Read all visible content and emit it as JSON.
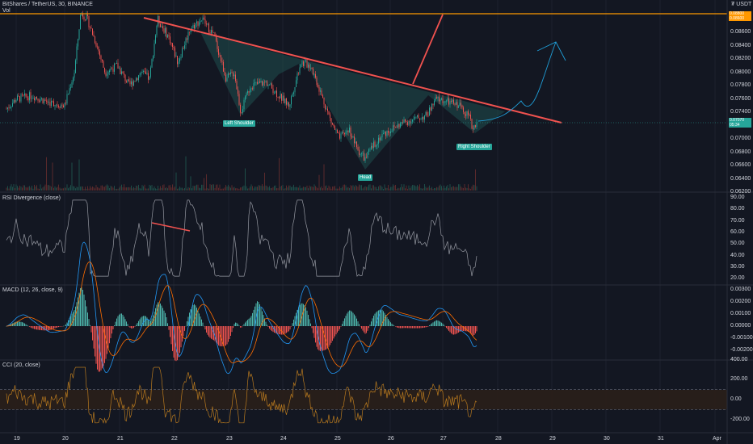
{
  "header": {
    "symbol": "BitShares / TetherUS, 30, BINANCE",
    "vol": "Vol",
    "currency": "₮ USDT"
  },
  "price_axis": {
    "ticks": [
      "0.08600",
      "0.08400",
      "0.08200",
      "0.08000",
      "0.07800",
      "0.07600",
      "0.07400",
      "0.07200",
      "0.07000",
      "0.06800",
      "0.06600",
      "0.06400",
      "0.06200"
    ],
    "current_price": "0.07070",
    "countdown": "05:34",
    "top_price": "0.08800",
    "top_price2": "0.08600"
  },
  "pattern_labels": {
    "left_shoulder": "Left Shoulder",
    "head": "Head",
    "right_shoulder": "Right Shoulder"
  },
  "rsi": {
    "title": "RSI Divergence (close)",
    "ticks": [
      "90.00",
      "80.00",
      "70.00",
      "60.00",
      "50.00",
      "40.00",
      "30.00",
      "20.00"
    ]
  },
  "macd": {
    "title": "MACD (12, 26, close, 9)",
    "ticks": [
      "0.00300",
      "0.00200",
      "0.00100",
      "0.00000",
      "-0.00100",
      "-0.00200"
    ]
  },
  "cci": {
    "title": "CCI (20, close)",
    "ticks": [
      "400.00",
      "200.00",
      "0.00",
      "-200.00"
    ]
  },
  "time_axis": {
    "labels": [
      "19",
      "20",
      "21",
      "22",
      "23",
      "24",
      "25",
      "26",
      "27",
      "28",
      "29",
      "30",
      "31",
      "Apr"
    ]
  },
  "colors": {
    "background": "#131722",
    "up": "#26a69a",
    "down": "#ef5350",
    "trendline": "#f0524f",
    "horizontal": "#ff9800",
    "projection": "#1f9ed8"
  }
}
